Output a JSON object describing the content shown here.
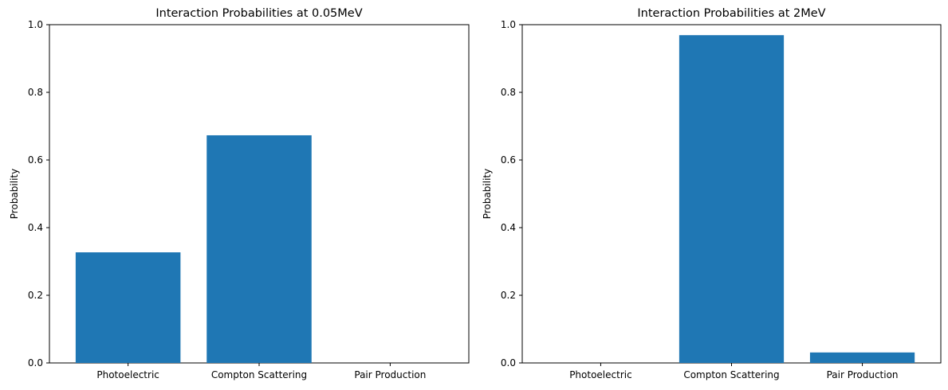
{
  "chart_data": [
    {
      "type": "bar",
      "title": "Interaction Probabilities at 0.05MeV",
      "categories": [
        "Photoelectric",
        "Compton Scattering",
        "Pair Production"
      ],
      "values": [
        0.327,
        0.673,
        0.0
      ],
      "xlabel": "",
      "ylabel": "Probability",
      "ylim": [
        0,
        1.0
      ],
      "yticks": [
        "0.0",
        "0.2",
        "0.4",
        "0.6",
        "0.8",
        "1.0"
      ],
      "grid": false,
      "color": "#1f77b4"
    },
    {
      "type": "bar",
      "title": "Interaction Probabilities at 2MeV",
      "categories": [
        "Photoelectric",
        "Compton Scattering",
        "Pair Production"
      ],
      "values": [
        0.0,
        0.969,
        0.031
      ],
      "xlabel": "",
      "ylabel": "Probability",
      "ylim": [
        0,
        1.0
      ],
      "yticks": [
        "0.0",
        "0.2",
        "0.4",
        "0.6",
        "0.8",
        "1.0"
      ],
      "grid": false,
      "color": "#1f77b4"
    }
  ]
}
